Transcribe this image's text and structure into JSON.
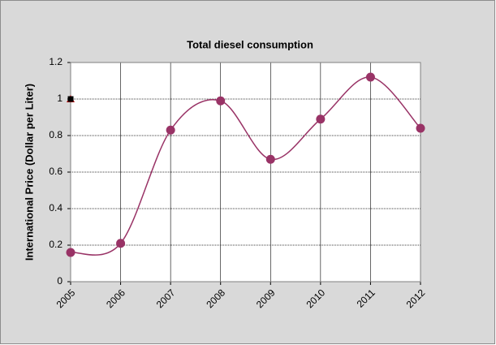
{
  "chart_data": {
    "type": "line",
    "title": "Total diesel consumption",
    "y_label": "International Price (Dollar per Liter)",
    "categories": [
      "2005",
      "2006",
      "2007",
      "2008",
      "2009",
      "2010",
      "2011",
      "2012"
    ],
    "series": [
      {
        "color": "#993366",
        "marker": "circle",
        "smooth": true,
        "line": true,
        "values": [
          0.16,
          0.21,
          0.83,
          0.99,
          0.67,
          0.89,
          1.12,
          0.84
        ]
      },
      {
        "color": "#cc0000",
        "marker": "triangle",
        "line": false,
        "values": [
          1,
          null,
          null,
          null,
          null,
          null,
          null,
          null
        ]
      },
      {
        "color": "#000000",
        "marker": "square",
        "line": false,
        "values": [
          1,
          null,
          null,
          null,
          null,
          null,
          null,
          null
        ]
      }
    ],
    "ylim": [
      0,
      1.2
    ],
    "yticks": [
      0,
      0.2,
      0.4,
      0.6,
      0.8,
      1,
      1.2
    ],
    "grid": true
  }
}
